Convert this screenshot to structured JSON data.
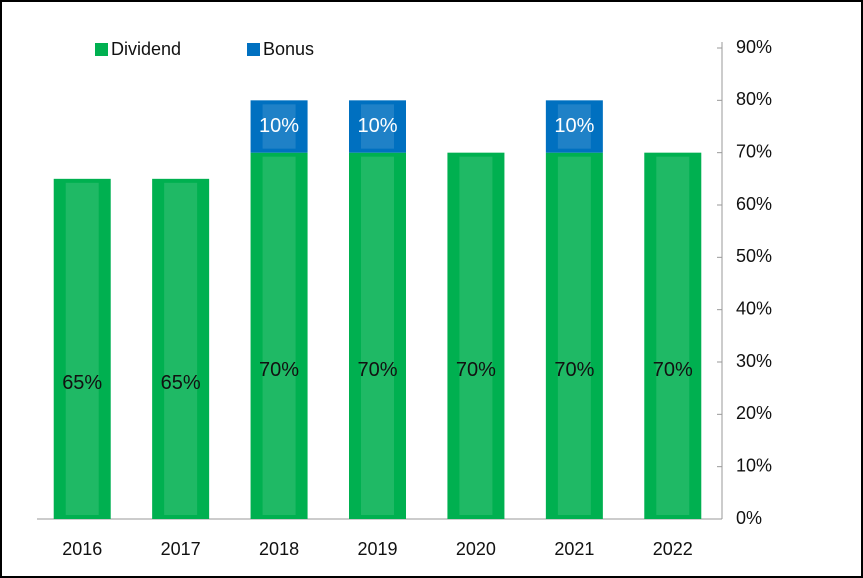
{
  "chart_data": {
    "type": "bar",
    "categories": [
      "2016",
      "2017",
      "2018",
      "2019",
      "2020",
      "2021",
      "2022"
    ],
    "series": [
      {
        "name": "Dividend",
        "color": "#00b050",
        "values": [
          65,
          65,
          70,
          70,
          70,
          70,
          70
        ],
        "value_labels": [
          "65%",
          "65%",
          "70%",
          "70%",
          "70%",
          "70%",
          "70%"
        ]
      },
      {
        "name": "Bonus",
        "color": "#0070c0",
        "values": [
          null,
          null,
          10,
          10,
          null,
          10,
          null
        ],
        "value_labels": [
          null,
          null,
          "10%",
          "10%",
          null,
          "10%",
          null
        ]
      }
    ],
    "stacked": true,
    "ylim": [
      0,
      90
    ],
    "yticks": [
      {
        "value": 0,
        "label": "0%"
      },
      {
        "value": 10,
        "label": "10%"
      },
      {
        "value": 20,
        "label": "20%"
      },
      {
        "value": 30,
        "label": "30%"
      },
      {
        "value": 40,
        "label": "40%"
      },
      {
        "value": 50,
        "label": "50%"
      },
      {
        "value": 60,
        "label": "60%"
      },
      {
        "value": 70,
        "label": "70%"
      },
      {
        "value": 80,
        "label": "80%"
      },
      {
        "value": 90,
        "label": "90%"
      }
    ],
    "y_axis_side": "right",
    "legend": "top-left"
  }
}
